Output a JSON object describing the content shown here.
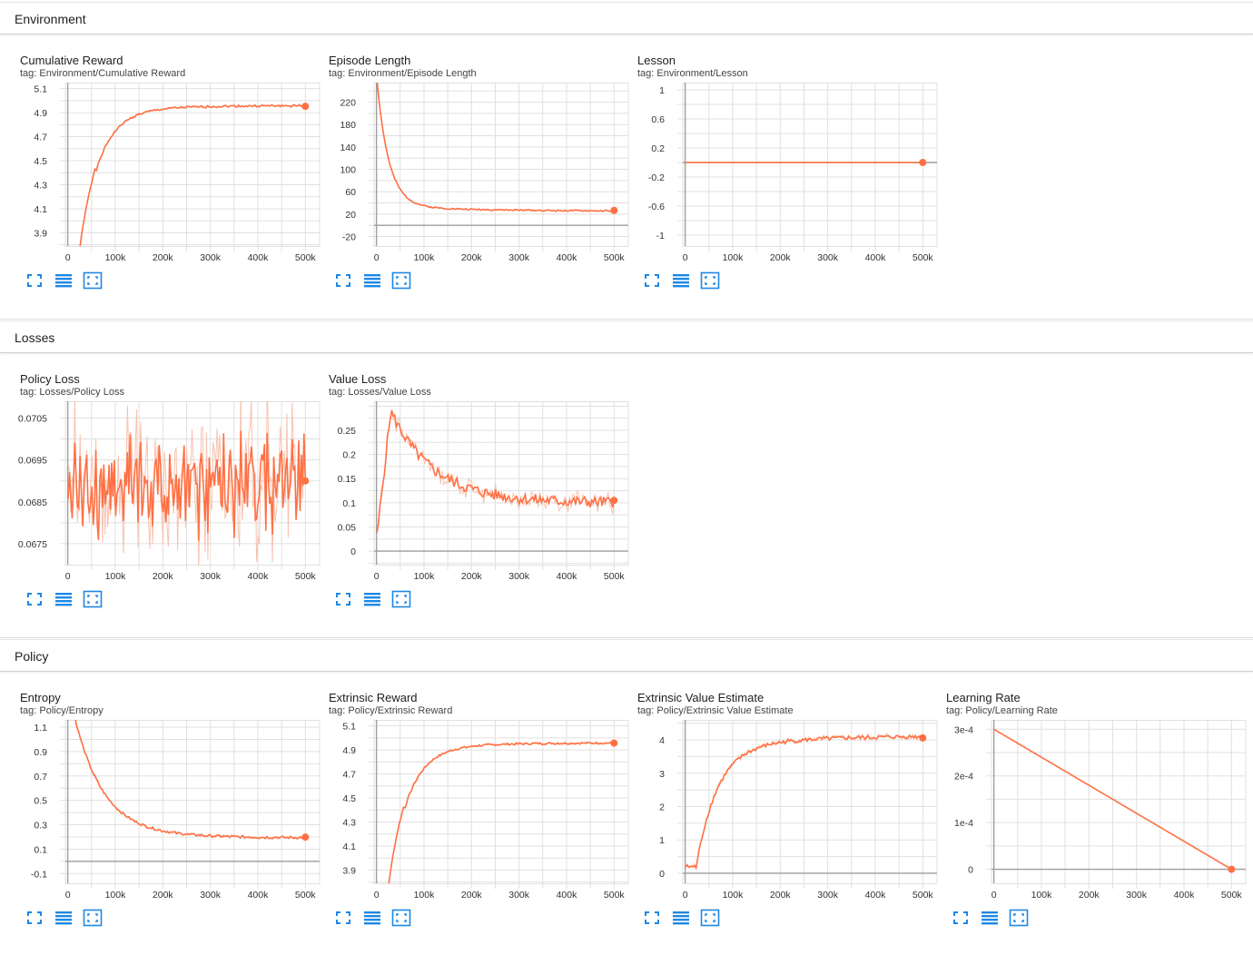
{
  "colors": {
    "accent": "#ff7043",
    "accent_light": "#f7c3b0",
    "icon_blue": "#1e88e5",
    "grid": "#e0e0e0",
    "axis": "#9e9e9e"
  },
  "icons": {
    "fullscreen": "fullscreen-icon",
    "toggle_log": "lines-icon",
    "fit_domain": "fit-domain-icon"
  },
  "sections": [
    {
      "title": "Environment",
      "cards": [
        {
          "title": "Cumulative Reward",
          "tag": "tag: Environment/Cumulative Reward",
          "chart_data": {
            "type": "line",
            "x_ticks": [
              0,
              100000,
              200000,
              300000,
              400000,
              500000
            ],
            "x_tick_labels": [
              "0",
              "100k",
              "200k",
              "300k",
              "400k",
              "500k"
            ],
            "xlim": [
              -5000,
              530000
            ],
            "ylim": [
              3.79,
              5.15
            ],
            "y_ticks": [
              3.9,
              4.1,
              4.3,
              4.5,
              4.7,
              4.9,
              5.1
            ],
            "y_tick_labels": [
              "3.9",
              "4.1",
              "4.3",
              "4.5",
              "4.7",
              "4.9",
              "5.1"
            ],
            "kind": "rise",
            "y_start": 3.6,
            "y_end": 4.96,
            "rise_x": 40000,
            "noise": 0.008,
            "seed": 1
          }
        },
        {
          "title": "Episode Length",
          "tag": "tag: Environment/Episode Length",
          "chart_data": {
            "type": "line",
            "x_ticks": [
              0,
              100000,
              200000,
              300000,
              400000,
              500000
            ],
            "x_tick_labels": [
              "0",
              "100k",
              "200k",
              "300k",
              "400k",
              "500k"
            ],
            "xlim": [
              -5000,
              530000
            ],
            "ylim": [
              -37,
              255
            ],
            "y_ticks": [
              -20,
              20,
              60,
              100,
              140,
              180,
              220
            ],
            "y_tick_labels": [
              "-20",
              "20",
              "60",
              "100",
              "140",
              "180",
              "220"
            ],
            "kind": "decay",
            "y_start": 260,
            "y_end": 25,
            "decay_x": 25000,
            "noise": 1.2,
            "seed": 2
          }
        },
        {
          "title": "Lesson",
          "tag": "tag: Environment/Lesson",
          "chart_data": {
            "type": "line",
            "x_ticks": [
              0,
              100000,
              200000,
              300000,
              400000,
              500000
            ],
            "x_tick_labels": [
              "0",
              "100k",
              "200k",
              "300k",
              "400k",
              "500k"
            ],
            "xlim": [
              -5000,
              530000
            ],
            "ylim": [
              -1.15,
              1.1
            ],
            "y_ticks": [
              -1,
              -0.6,
              -0.2,
              0.2,
              0.6,
              1
            ],
            "y_tick_labels": [
              "-1",
              "-0.6",
              "-0.2",
              "0.2",
              "0.6",
              "1"
            ],
            "kind": "flat",
            "y_start": 0,
            "y_end": 0,
            "noise": 0,
            "seed": 3
          }
        }
      ]
    },
    {
      "title": "Losses",
      "cards": [
        {
          "title": "Policy Loss",
          "tag": "tag: Losses/Policy Loss",
          "chart_data": {
            "type": "line",
            "x_ticks": [
              0,
              100000,
              200000,
              300000,
              400000,
              500000
            ],
            "x_tick_labels": [
              "0",
              "100k",
              "200k",
              "300k",
              "400k",
              "500k"
            ],
            "xlim": [
              -5000,
              530000
            ],
            "ylim": [
              0.067,
              0.0709
            ],
            "y_ticks": [
              0.0675,
              0.0685,
              0.0695,
              0.0705
            ],
            "y_tick_labels": [
              "0.0675",
              "0.0685",
              "0.0695",
              "0.0705"
            ],
            "kind": "noisy",
            "y_start": 0.0689,
            "y_end": 0.0689,
            "noise": 0.00075,
            "seed": 4,
            "last": 0.069
          }
        },
        {
          "title": "Value Loss",
          "tag": "tag: Losses/Value Loss",
          "chart_data": {
            "type": "line",
            "x_ticks": [
              0,
              100000,
              200000,
              300000,
              400000,
              500000
            ],
            "x_tick_labels": [
              "0",
              "100k",
              "200k",
              "300k",
              "400k",
              "500k"
            ],
            "xlim": [
              -5000,
              530000
            ],
            "ylim": [
              -0.028,
              0.31
            ],
            "y_ticks": [
              0,
              0.05,
              0.1,
              0.15,
              0.2,
              0.25
            ],
            "y_tick_labels": [
              "0",
              "0.05",
              "0.1",
              "0.15",
              "0.2",
              "0.25"
            ],
            "kind": "spike",
            "y_start": 0.01,
            "y_end": 0.1,
            "noise": 0.012,
            "seed": 5,
            "last": 0.105
          }
        }
      ]
    },
    {
      "title": "Policy",
      "cards": [
        {
          "title": "Entropy",
          "tag": "tag: Policy/Entropy",
          "chart_data": {
            "type": "line",
            "x_ticks": [
              0,
              100000,
              200000,
              300000,
              400000,
              500000
            ],
            "x_tick_labels": [
              "0",
              "100k",
              "200k",
              "300k",
              "400k",
              "500k"
            ],
            "xlim": [
              -5000,
              530000
            ],
            "ylim": [
              -0.18,
              1.16
            ],
            "y_ticks": [
              -0.1,
              0.1,
              0.3,
              0.5,
              0.7,
              0.9,
              1.1
            ],
            "y_tick_labels": [
              "-0.1",
              "0.1",
              "0.3",
              "0.5",
              "0.7",
              "0.9",
              "1.1"
            ],
            "kind": "decay",
            "y_start": 1.4,
            "y_end": 0.19,
            "decay_x": 60000,
            "noise": 0.01,
            "seed": 6
          }
        },
        {
          "title": "Extrinsic Reward",
          "tag": "tag: Policy/Extrinsic Reward",
          "chart_data": {
            "type": "line",
            "x_ticks": [
              0,
              100000,
              200000,
              300000,
              400000,
              500000
            ],
            "x_tick_labels": [
              "0",
              "100k",
              "200k",
              "300k",
              "400k",
              "500k"
            ],
            "xlim": [
              -5000,
              530000
            ],
            "ylim": [
              3.79,
              5.15
            ],
            "y_ticks": [
              3.9,
              4.1,
              4.3,
              4.5,
              4.7,
              4.9,
              5.1
            ],
            "y_tick_labels": [
              "3.9",
              "4.1",
              "4.3",
              "4.5",
              "4.7",
              "4.9",
              "5.1"
            ],
            "kind": "rise",
            "y_start": 3.6,
            "y_end": 4.96,
            "rise_x": 40000,
            "noise": 0.008,
            "seed": 7
          }
        },
        {
          "title": "Extrinsic Value Estimate",
          "tag": "tag: Policy/Extrinsic Value Estimate",
          "chart_data": {
            "type": "line",
            "x_ticks": [
              0,
              100000,
              200000,
              300000,
              400000,
              500000
            ],
            "x_tick_labels": [
              "0",
              "100k",
              "200k",
              "300k",
              "400k",
              "500k"
            ],
            "xlim": [
              -5000,
              530000
            ],
            "ylim": [
              -0.3,
              4.6
            ],
            "y_ticks": [
              0,
              1,
              2,
              3,
              4
            ],
            "y_tick_labels": [
              "0",
              "1",
              "2",
              "3",
              "4"
            ],
            "kind": "valueest",
            "y_start": 0,
            "y_end": 4.15,
            "noise": 0.06,
            "seed": 8
          }
        },
        {
          "title": "Learning Rate",
          "tag": "tag: Policy/Learning Rate",
          "chart_data": {
            "type": "line",
            "x_ticks": [
              0,
              100000,
              200000,
              300000,
              400000,
              500000
            ],
            "x_tick_labels": [
              "0",
              "100k",
              "200k",
              "300k",
              "400k",
              "500k"
            ],
            "xlim": [
              -5000,
              530000
            ],
            "ylim": [
              -3e-05,
              0.00032
            ],
            "y_ticks": [
              0,
              0.0001,
              0.0002,
              0.0003
            ],
            "y_tick_labels": [
              "0",
              "1e-4",
              "2e-4",
              "3e-4"
            ],
            "kind": "linear",
            "y_start": 0.0003,
            "y_end": 0,
            "noise": 0,
            "seed": 9
          }
        }
      ]
    }
  ]
}
